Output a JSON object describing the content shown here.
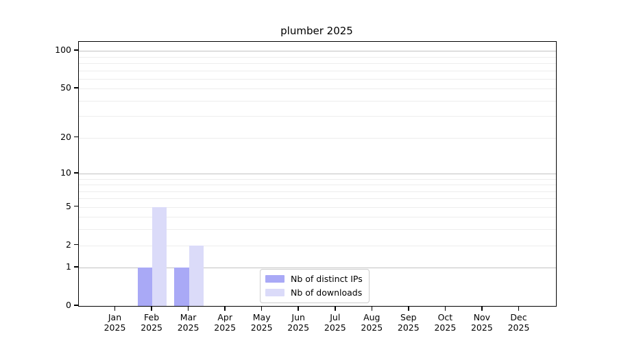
{
  "title": "plumber 2025",
  "chart_data": {
    "type": "bar",
    "title": "plumber 2025",
    "categories": [
      "Jan 2025",
      "Feb 2025",
      "Mar 2025",
      "Apr 2025",
      "May 2025",
      "Jun 2025",
      "Jul 2025",
      "Aug 2025",
      "Sep 2025",
      "Oct 2025",
      "Nov 2025",
      "Dec 2025"
    ],
    "months": [
      "Jan",
      "Feb",
      "Mar",
      "Apr",
      "May",
      "Jun",
      "Jul",
      "Aug",
      "Sep",
      "Oct",
      "Nov",
      "Dec"
    ],
    "year": "2025",
    "series": [
      {
        "name": "Nb of distinct IPs",
        "color": "#a9a9f6",
        "values": [
          0,
          1,
          1,
          0,
          0,
          0,
          0,
          0,
          0,
          0,
          0,
          0
        ]
      },
      {
        "name": "Nb of downloads",
        "color": "#dbdbf9",
        "values": [
          0,
          5,
          2,
          0,
          0,
          0,
          0,
          0,
          0,
          0,
          0,
          0
        ]
      }
    ],
    "xlabel": "",
    "ylabel": "",
    "y_ticks": [
      0,
      1,
      2,
      5,
      10,
      20,
      50,
      100
    ],
    "y_major_gridlines": [
      1,
      10,
      100
    ],
    "y_minor_gridlines": [
      2,
      3,
      4,
      5,
      6,
      7,
      8,
      9,
      20,
      30,
      40,
      50,
      60,
      70,
      80,
      90
    ],
    "y_scale": "log10(value+1)",
    "ylim": [
      0,
      117
    ],
    "grid": "horizontal",
    "legend_position": "lower center",
    "bar_group": "paired, IPs left of tick, downloads right of tick",
    "colors": {
      "distinct_ips_bar": "#a9a9f6",
      "downloads_bar": "#dbdbf9",
      "grid_major": "#c2c2c2",
      "grid_minor": "#ededed",
      "axis": "#000000",
      "background": "#ffffff"
    }
  }
}
